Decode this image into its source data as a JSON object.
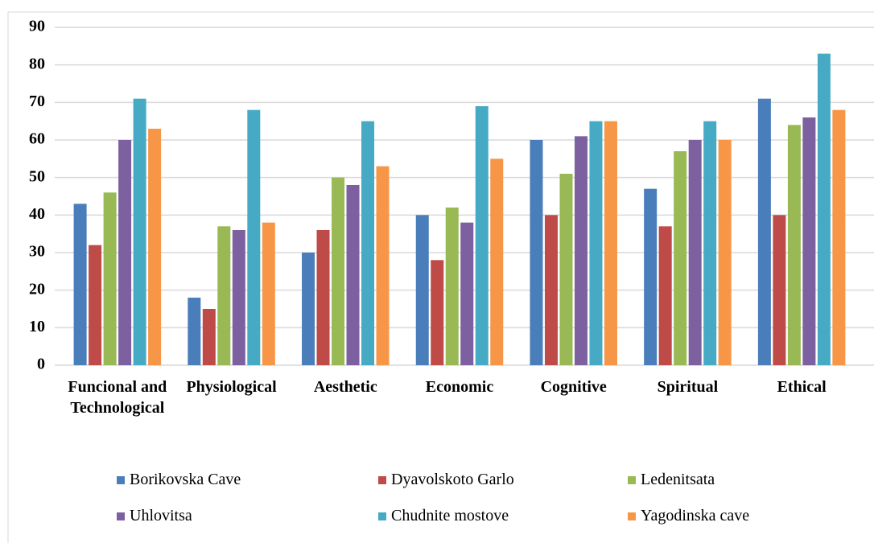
{
  "chart_data": {
    "type": "bar",
    "categories": [
      "Funcional and Technological",
      "Physiological",
      "Aesthetic",
      "Economic",
      "Cognitive",
      "Spiritual",
      "Ethical"
    ],
    "series": [
      {
        "name": "Borikovska Cave",
        "color": "#4a7ebb",
        "values": [
          43,
          18,
          30,
          40,
          60,
          47,
          71
        ]
      },
      {
        "name": "Dyavolskoto Garlo",
        "color": "#be4b48",
        "values": [
          32,
          15,
          36,
          28,
          40,
          37,
          40
        ]
      },
      {
        "name": "Ledenitsata",
        "color": "#98b954",
        "values": [
          46,
          37,
          50,
          42,
          51,
          57,
          64
        ]
      },
      {
        "name": "Uhlovitsa",
        "color": "#7d60a0",
        "values": [
          60,
          36,
          48,
          38,
          61,
          60,
          66
        ]
      },
      {
        "name": "Chudnite mostove",
        "color": "#46aac5",
        "values": [
          71,
          68,
          65,
          69,
          65,
          65,
          83
        ]
      },
      {
        "name": "Yagodinska cave",
        "color": "#f79646",
        "values": [
          63,
          38,
          53,
          55,
          65,
          60,
          68
        ]
      }
    ],
    "ylim": [
      0,
      90
    ],
    "yticks": [
      0,
      10,
      20,
      30,
      40,
      50,
      60,
      70,
      80,
      90
    ],
    "grid": true,
    "legend": "bottom"
  }
}
